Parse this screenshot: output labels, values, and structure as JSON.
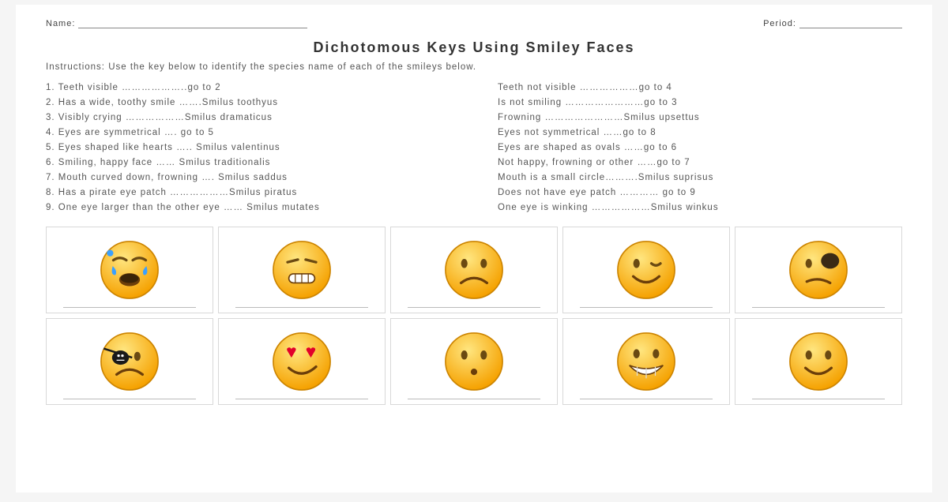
{
  "header": {
    "name_label": "Name:",
    "period_label": "Period:"
  },
  "title": "Dichotomous Keys Using Smiley Faces",
  "instructions": "Instructions: Use the key below to identify the species name of each of the smileys below.",
  "key_rows": [
    {
      "left": "1. Teeth visible ………………..go to 2",
      "right": "Teeth not visible ………………go to 4"
    },
    {
      "left": "2. Has a wide, toothy smile …….Smilus toothyus",
      "right": "Is not smiling ……………………go to 3"
    },
    {
      "left": "3. Visibly crying ………………Smilus dramaticus",
      "right": "Frowning ……………………Smilus upsettus"
    },
    {
      "left": "4. Eyes are symmetrical …. go to 5",
      "right": "Eyes not symmetrical ……go to 8"
    },
    {
      "left": "5. Eyes shaped like hearts ….. Smilus valentinus",
      "right": "Eyes are shaped as ovals ……go to 6"
    },
    {
      "left": "6. Smiling, happy face …… Smilus traditionalis",
      "right": "Not happy, frowning or other ……go to 7"
    },
    {
      "left": "7. Mouth curved down, frowning …. Smilus saddus",
      "right": "Mouth is a small circle……….Smilus suprisus"
    },
    {
      "left": "8. Has a pirate eye patch ………………Smilus piratus",
      "right": "Does not have eye patch ………… go to 9"
    },
    {
      "left": "9. One eye larger than the other eye …… Smilus mutates",
      "right": "One eye is winking ………………Smilus winkus"
    }
  ],
  "faces": [
    {
      "name": "crying-face",
      "type": "crying"
    },
    {
      "name": "upset-face",
      "type": "upset"
    },
    {
      "name": "frown-face",
      "type": "frown"
    },
    {
      "name": "wink-face",
      "type": "wink"
    },
    {
      "name": "mutant-face",
      "type": "mutant"
    },
    {
      "name": "pirate-face",
      "type": "pirate"
    },
    {
      "name": "hearts-face",
      "type": "hearts"
    },
    {
      "name": "surprise-face",
      "type": "surprise"
    },
    {
      "name": "toothy-face",
      "type": "toothy"
    },
    {
      "name": "smile-face",
      "type": "smile"
    }
  ],
  "style": {
    "face_fill_top": "#ffe680",
    "face_fill_bot": "#f5a100",
    "face_stroke": "#cc8400",
    "eye_color": "#6b4a12",
    "mouth_color": "#6b3e0a",
    "tear_color": "#3aa0ff",
    "heart_color": "#e2002b",
    "patch_color": "#1a1a1a",
    "teeth_color": "#ffffff",
    "mutant_patch": "#3a2a15"
  }
}
